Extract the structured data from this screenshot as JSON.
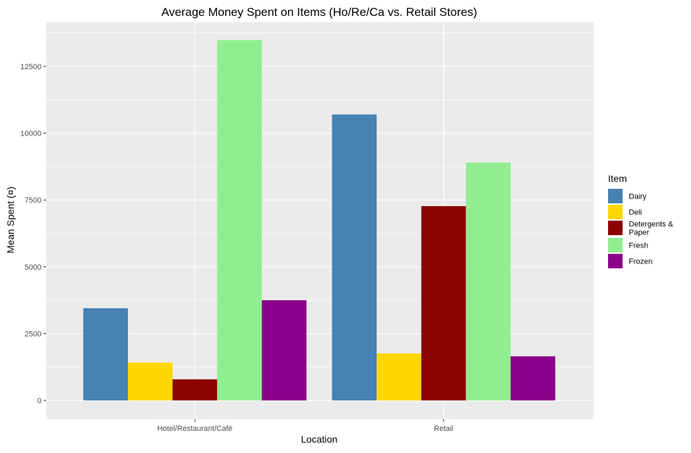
{
  "chart_data": {
    "type": "bar",
    "title": "Average Money Spent on Items (Ho/Re/Ca vs. Retail Stores)",
    "xlabel": "Location",
    "ylabel": "Mean Spent (¤)",
    "categories": [
      "Hotel/Restaurant/Café",
      "Retail"
    ],
    "ylim": [
      -700,
      14000
    ],
    "yticks": [
      0,
      2500,
      5000,
      7500,
      10000,
      12500
    ],
    "grid": true,
    "legend": {
      "title": "Item",
      "placement": "right"
    },
    "series": [
      {
        "name": "Dairy",
        "values": [
          3450,
          10700
        ],
        "color": "#4682B4"
      },
      {
        "name": "Deli",
        "values": [
          1420,
          1760
        ],
        "color": "#FFD700"
      },
      {
        "name": "Detergents & Paper",
        "label_lines": [
          "Detergents &",
          "Paper"
        ],
        "values": [
          790,
          7270
        ],
        "color": "#8B0000"
      },
      {
        "name": "Fresh",
        "values": [
          13480,
          8900
        ],
        "color": "#90EE90"
      },
      {
        "name": "Frozen",
        "values": [
          3750,
          1650
        ],
        "color": "#8B008B"
      }
    ],
    "panel_background": "#EBEBEB",
    "grid_color": "#FFFFFF"
  }
}
